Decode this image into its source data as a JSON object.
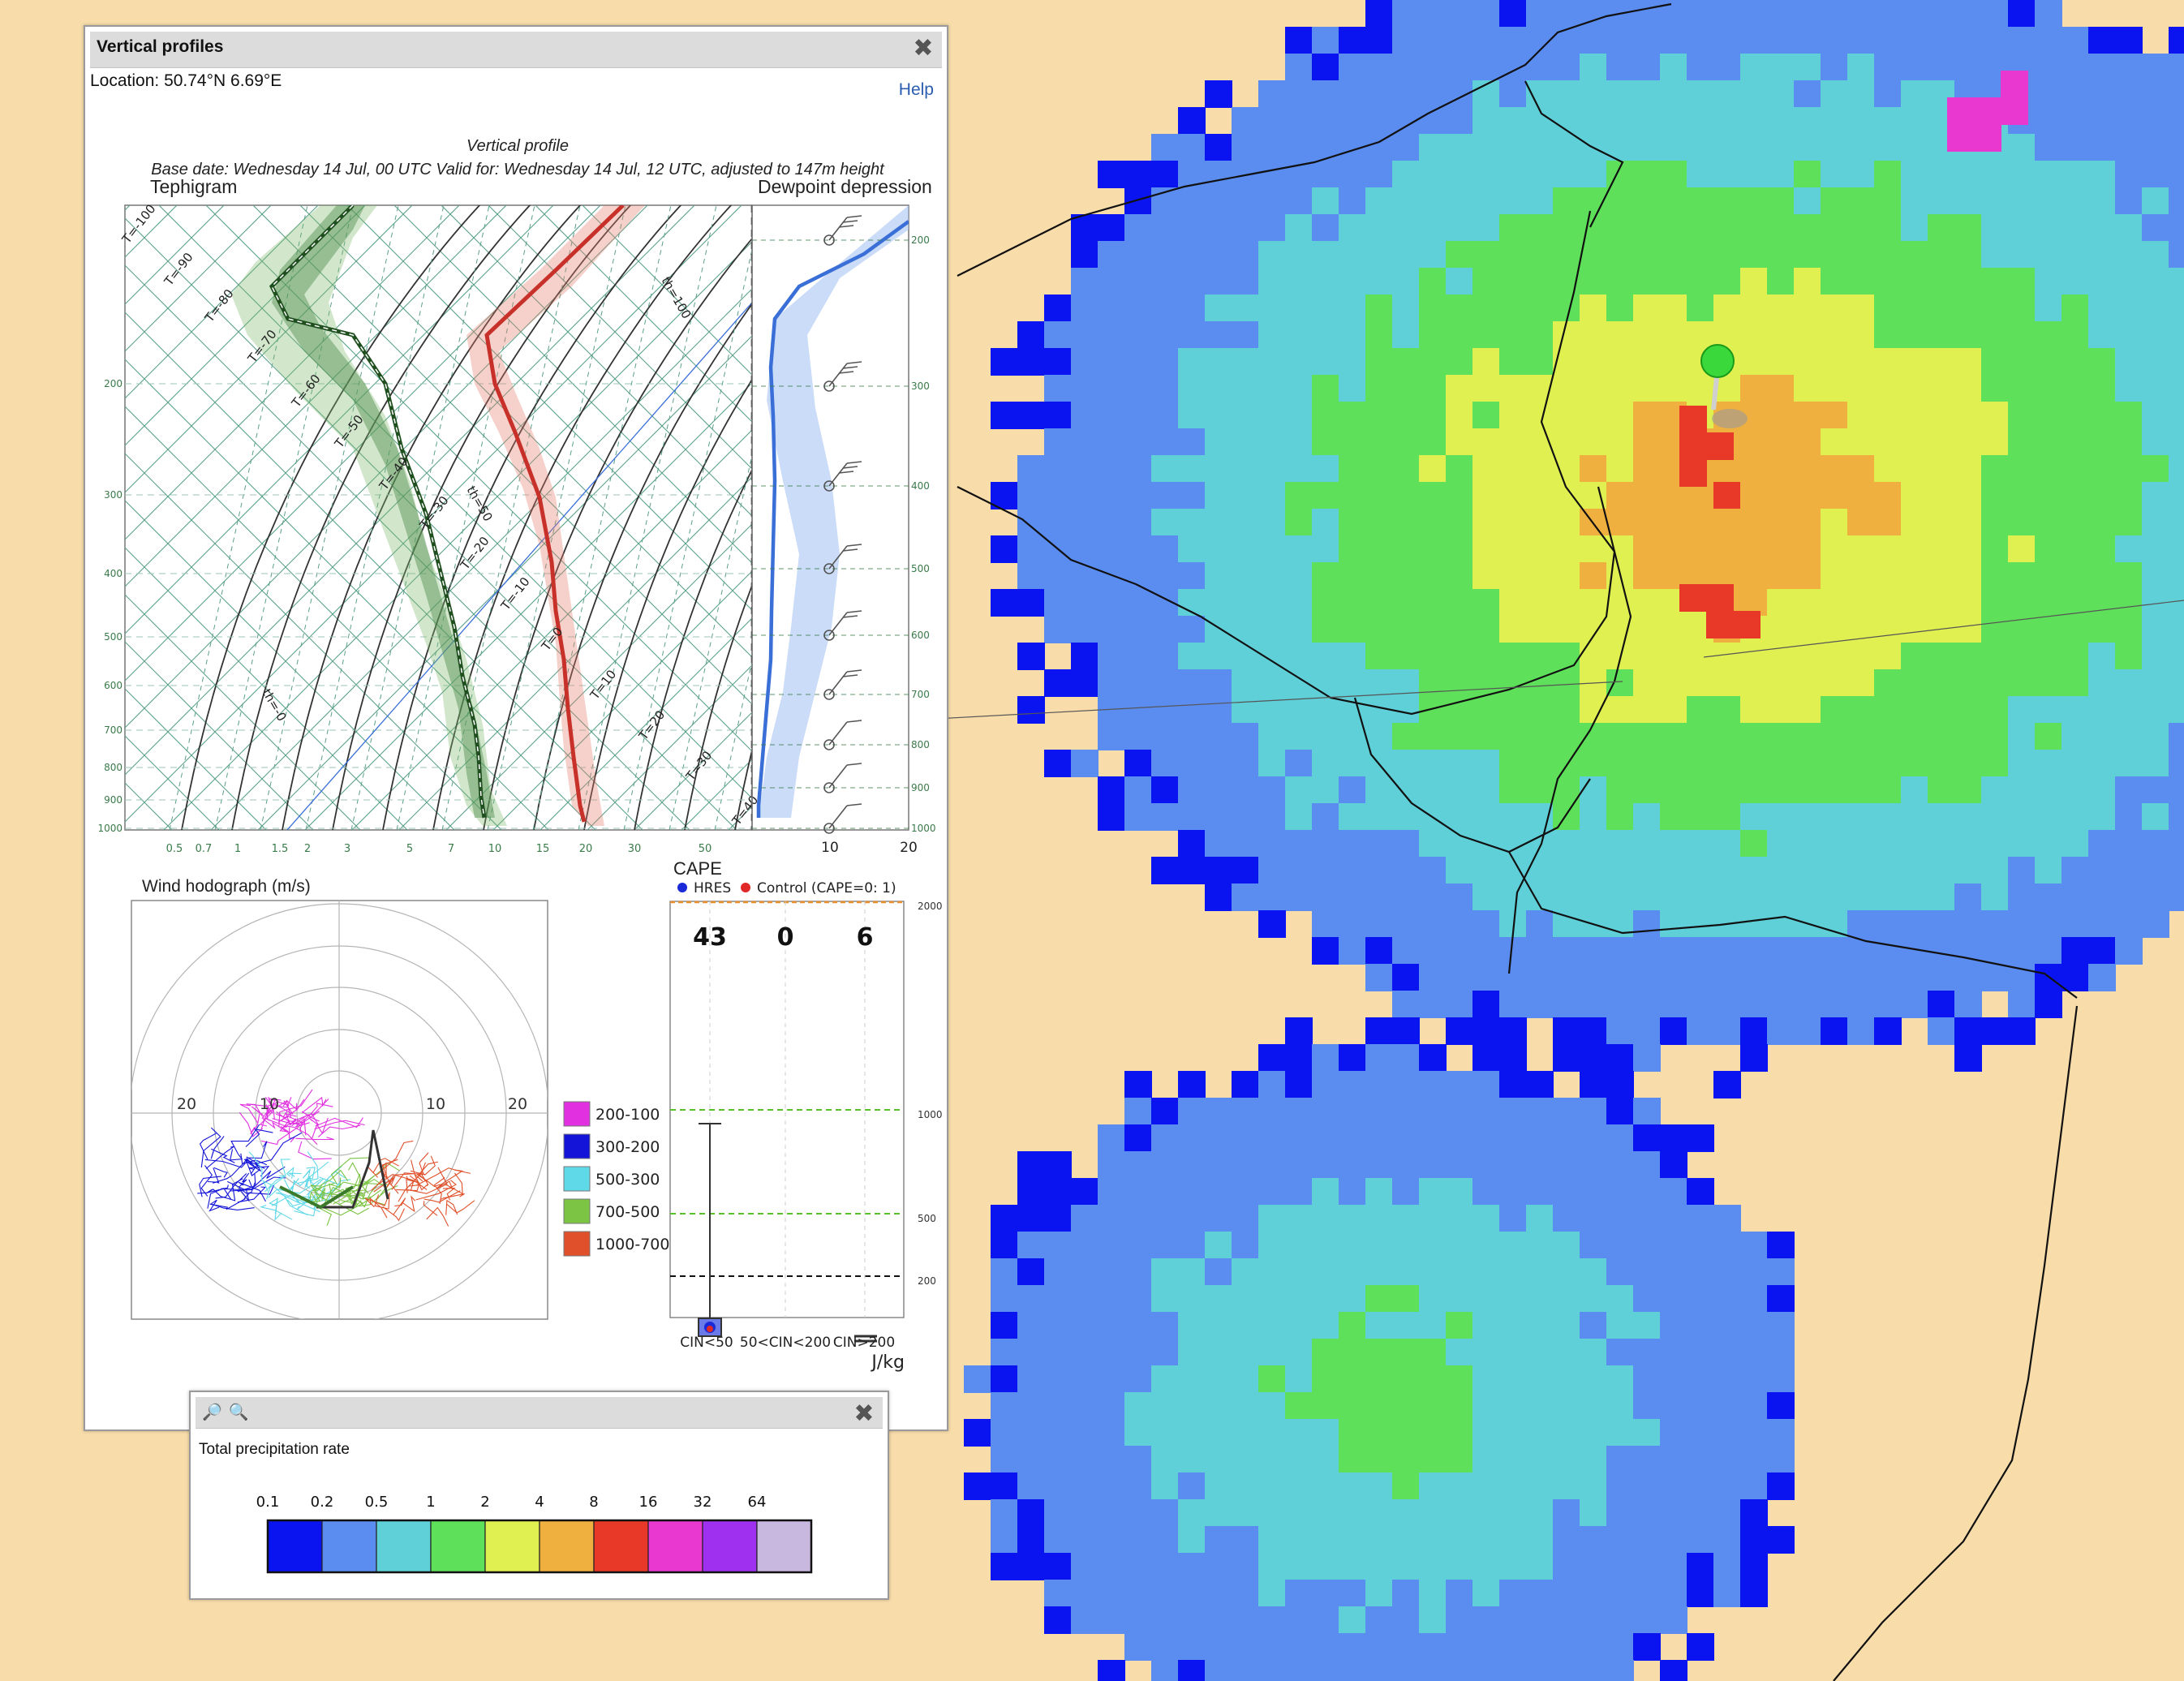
{
  "vertical_profiles": {
    "title": "Vertical profiles",
    "close_icon": "close-icon",
    "location": "Location: 50.74°N 6.69°E",
    "help": "Help",
    "chart_title": "Vertical profile",
    "subtitle": "Base date: Wednesday 14 Jul, 00 UTC Valid for: Wednesday 14 Jul, 12 UTC, adjusted to 147m height",
    "tephigram": {
      "label": "Tephigram",
      "pressure_levels": [
        "200",
        "300",
        "400",
        "500",
        "600",
        "700",
        "800",
        "900",
        "1000"
      ],
      "mixing_ratio_ticks": [
        "0.5",
        "0.7",
        "1",
        "1.5",
        "2",
        "3",
        "5",
        "7",
        "10",
        "15",
        "20",
        "30",
        "50"
      ],
      "temperature_labels": [
        "T=-100",
        "T=-90",
        "T=-80",
        "T=-70",
        "T=-60",
        "T=-50",
        "T=-40",
        "T=-30",
        "T=-20",
        "T=-10",
        "T=0",
        "T=10",
        "T=20",
        "T=30",
        "T=40"
      ],
      "theta_labels": [
        "th=-0",
        "th=50",
        "th=100"
      ],
      "series": [
        {
          "name": "temperature",
          "color": "#c8302a"
        },
        {
          "name": "dewpoint",
          "color": "#2f6a2f"
        }
      ]
    },
    "dewpoint_depression": {
      "label": "Dewpoint depression",
      "pressure_levels": [
        "200",
        "300",
        "400",
        "500",
        "600",
        "700",
        "800",
        "900",
        "1000"
      ],
      "x_ticks": [
        "10",
        "20"
      ],
      "color": "#3a6fd8"
    },
    "hodograph": {
      "title": "Wind hodograph (m/s)",
      "ring_labels": [
        "20",
        "10",
        "10",
        "20"
      ],
      "legend": [
        {
          "label": "200-100",
          "color": "#e030e0"
        },
        {
          "label": "300-200",
          "color": "#1414d8"
        },
        {
          "label": "500-300",
          "color": "#5fd8e8"
        },
        {
          "label": "700-500",
          "color": "#7cc444"
        },
        {
          "label": "1000-700",
          "color": "#e0502a"
        }
      ]
    },
    "cape": {
      "title": "CAPE",
      "legend_hres": "HRES",
      "legend_control": "Control (CAPE=0: 1)",
      "values": [
        "43",
        "0",
        "6"
      ],
      "y_ticks": [
        "2000",
        "1000",
        "500",
        "200"
      ],
      "x_labels": [
        "CIN<50",
        "50<CIN<200",
        "CIN>200"
      ],
      "unit": "J/kg"
    }
  },
  "legend_window": {
    "zoom_in_icon": "zoom-in-icon",
    "zoom_out_icon": "zoom-out-icon",
    "title": "Total precipitation rate",
    "thresholds": [
      "0.1",
      "0.2",
      "0.5",
      "1",
      "2",
      "4",
      "8",
      "16",
      "32",
      "64"
    ],
    "colors": [
      "#0a14f0",
      "#5b8cf0",
      "#5fcfd8",
      "#5fe05a",
      "#e0f050",
      "#f0b040",
      "#e83828",
      "#e838d0",
      "#a030f0",
      "#c8b8e0"
    ]
  },
  "map": {
    "land_color": "#f8dcaa",
    "marker_color": "#3ad83a"
  }
}
